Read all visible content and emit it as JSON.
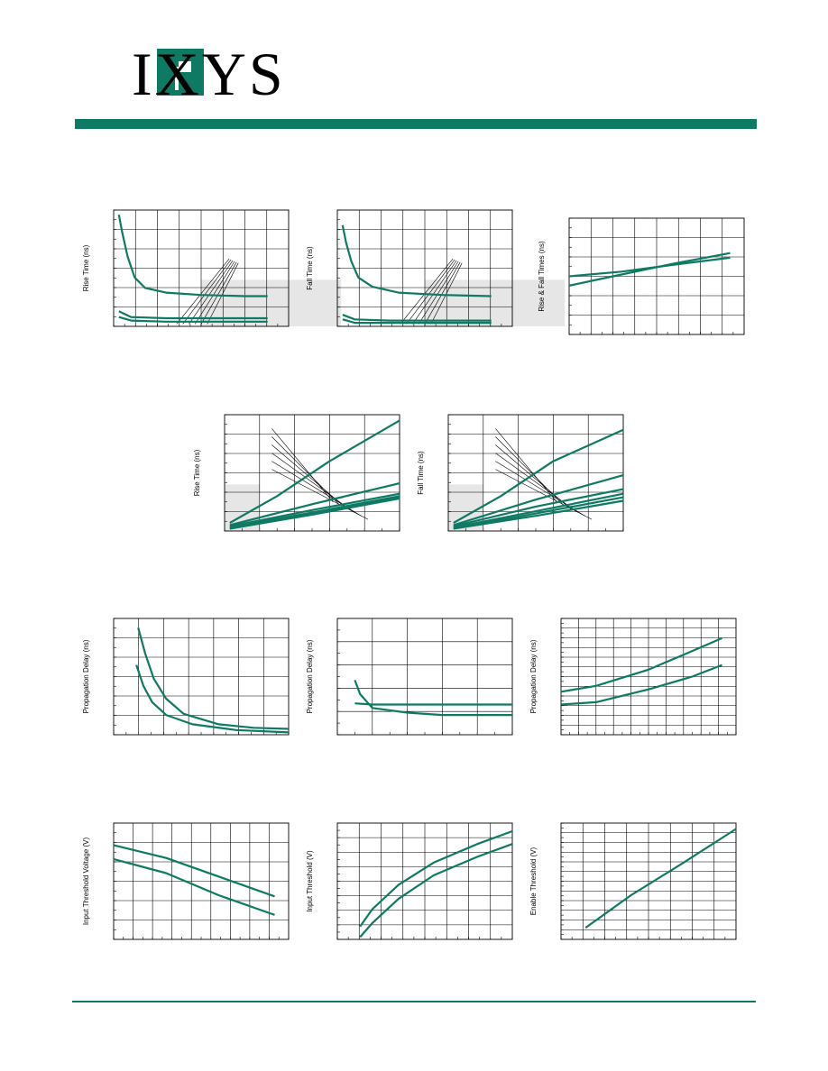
{
  "logo": {
    "text": "IXYS",
    "brand_color": "#0e7a63"
  },
  "colors": {
    "curve": "#0e7a63",
    "grid": "#000000",
    "shade": "#e6e6e6"
  },
  "charts": [
    {
      "ylabel": "Rise Time (ns)",
      "curves": [
        [
          [
            0.03,
            0.96
          ],
          [
            0.05,
            0.8
          ],
          [
            0.08,
            0.6
          ],
          [
            0.12,
            0.42
          ],
          [
            0.18,
            0.33
          ],
          [
            0.3,
            0.29
          ],
          [
            0.5,
            0.27
          ],
          [
            0.75,
            0.26
          ],
          [
            0.88,
            0.26
          ]
        ],
        [
          [
            0.03,
            0.13
          ],
          [
            0.1,
            0.08
          ],
          [
            0.3,
            0.07
          ],
          [
            0.88,
            0.07
          ]
        ],
        [
          [
            0.03,
            0.08
          ],
          [
            0.1,
            0.05
          ],
          [
            0.3,
            0.04
          ],
          [
            0.88,
            0.04
          ]
        ]
      ]
    },
    {
      "ylabel": "Fall Time (ns)",
      "curves": [
        [
          [
            0.03,
            0.87
          ],
          [
            0.05,
            0.72
          ],
          [
            0.08,
            0.56
          ],
          [
            0.12,
            0.42
          ],
          [
            0.2,
            0.34
          ],
          [
            0.35,
            0.29
          ],
          [
            0.6,
            0.27
          ],
          [
            0.88,
            0.26
          ]
        ],
        [
          [
            0.03,
            0.1
          ],
          [
            0.1,
            0.06
          ],
          [
            0.3,
            0.05
          ],
          [
            0.88,
            0.05
          ]
        ],
        [
          [
            0.03,
            0.06
          ],
          [
            0.1,
            0.03
          ],
          [
            0.3,
            0.03
          ],
          [
            0.88,
            0.03
          ]
        ]
      ]
    },
    {
      "ylabel": "Rise & Fall Times (ns)",
      "curves": [
        [
          [
            0.0,
            0.5
          ],
          [
            0.3,
            0.54
          ],
          [
            0.6,
            0.6
          ],
          [
            0.92,
            0.66
          ]
        ],
        [
          [
            0.0,
            0.42
          ],
          [
            0.25,
            0.5
          ],
          [
            0.6,
            0.61
          ],
          [
            0.92,
            0.7
          ]
        ]
      ]
    },
    {
      "ylabel": "Rise Time (ns)",
      "curves": [
        [
          [
            0.03,
            0.07
          ],
          [
            0.3,
            0.3
          ],
          [
            0.6,
            0.6
          ],
          [
            1.0,
            0.95
          ]
        ],
        [
          [
            0.03,
            0.05
          ],
          [
            0.5,
            0.23
          ],
          [
            1.0,
            0.41
          ]
        ],
        [
          [
            0.03,
            0.04
          ],
          [
            0.5,
            0.18
          ],
          [
            1.0,
            0.32
          ]
        ],
        [
          [
            0.03,
            0.03
          ],
          [
            0.5,
            0.16
          ],
          [
            1.0,
            0.3
          ]
        ],
        [
          [
            0.03,
            0.02
          ],
          [
            0.5,
            0.15
          ],
          [
            1.0,
            0.29
          ]
        ],
        [
          [
            0.03,
            0.02
          ],
          [
            0.5,
            0.14
          ],
          [
            1.0,
            0.28
          ]
        ]
      ]
    },
    {
      "ylabel": "Fall Time (ns)",
      "curves": [
        [
          [
            0.03,
            0.07
          ],
          [
            0.3,
            0.3
          ],
          [
            0.6,
            0.6
          ],
          [
            1.0,
            0.87
          ]
        ],
        [
          [
            0.03,
            0.05
          ],
          [
            0.5,
            0.27
          ],
          [
            1.0,
            0.48
          ]
        ],
        [
          [
            0.03,
            0.04
          ],
          [
            0.5,
            0.21
          ],
          [
            1.0,
            0.36
          ]
        ],
        [
          [
            0.03,
            0.03
          ],
          [
            0.5,
            0.17
          ],
          [
            1.0,
            0.32
          ]
        ],
        [
          [
            0.03,
            0.02
          ],
          [
            0.5,
            0.15
          ],
          [
            1.0,
            0.29
          ]
        ],
        [
          [
            0.03,
            0.02
          ],
          [
            0.5,
            0.13
          ],
          [
            1.0,
            0.26
          ]
        ]
      ]
    },
    {
      "ylabel": "Propagation Delay (ns)",
      "curves": [
        [
          [
            0.14,
            0.92
          ],
          [
            0.18,
            0.7
          ],
          [
            0.23,
            0.48
          ],
          [
            0.3,
            0.31
          ],
          [
            0.4,
            0.18
          ],
          [
            0.6,
            0.09
          ],
          [
            0.8,
            0.06
          ],
          [
            1.0,
            0.05
          ]
        ],
        [
          [
            0.13,
            0.6
          ],
          [
            0.17,
            0.42
          ],
          [
            0.22,
            0.28
          ],
          [
            0.3,
            0.17
          ],
          [
            0.45,
            0.09
          ],
          [
            0.7,
            0.04
          ],
          [
            1.0,
            0.02
          ]
        ]
      ]
    },
    {
      "ylabel": "Propagation Delay (ns)",
      "curves": [
        [
          [
            0.1,
            0.47
          ],
          [
            0.13,
            0.35
          ],
          [
            0.2,
            0.23
          ],
          [
            0.4,
            0.19
          ],
          [
            0.6,
            0.17
          ],
          [
            1.0,
            0.17
          ]
        ],
        [
          [
            0.1,
            0.27
          ],
          [
            0.2,
            0.26
          ],
          [
            1.0,
            0.26
          ]
        ]
      ]
    },
    {
      "ylabel": "Propagation Delay (ns)",
      "curves": [
        [
          [
            0.0,
            0.37
          ],
          [
            0.2,
            0.42
          ],
          [
            0.5,
            0.56
          ],
          [
            0.75,
            0.72
          ],
          [
            0.92,
            0.83
          ]
        ],
        [
          [
            0.0,
            0.26
          ],
          [
            0.2,
            0.28
          ],
          [
            0.5,
            0.39
          ],
          [
            0.75,
            0.5
          ],
          [
            0.92,
            0.6
          ]
        ]
      ]
    },
    {
      "ylabel": "Input Threshold Voltage (V)",
      "curves": [
        [
          [
            0.0,
            0.81
          ],
          [
            0.3,
            0.7
          ],
          [
            0.6,
            0.54
          ],
          [
            0.92,
            0.37
          ]
        ],
        [
          [
            0.0,
            0.69
          ],
          [
            0.3,
            0.57
          ],
          [
            0.6,
            0.38
          ],
          [
            0.92,
            0.21
          ]
        ]
      ]
    },
    {
      "ylabel": "Input Threshold (V)",
      "curves": [
        [
          [
            0.13,
            0.11
          ],
          [
            0.2,
            0.26
          ],
          [
            0.35,
            0.47
          ],
          [
            0.55,
            0.66
          ],
          [
            0.8,
            0.82
          ],
          [
            1.0,
            0.93
          ]
        ],
        [
          [
            0.13,
            0.02
          ],
          [
            0.2,
            0.14
          ],
          [
            0.35,
            0.35
          ],
          [
            0.55,
            0.55
          ],
          [
            0.8,
            0.71
          ],
          [
            1.0,
            0.82
          ]
        ]
      ]
    },
    {
      "ylabel": "Enable Threshold (V)",
      "curves": [
        [
          [
            0.14,
            0.1
          ],
          [
            0.4,
            0.38
          ],
          [
            0.7,
            0.66
          ],
          [
            1.0,
            0.95
          ]
        ]
      ]
    }
  ]
}
